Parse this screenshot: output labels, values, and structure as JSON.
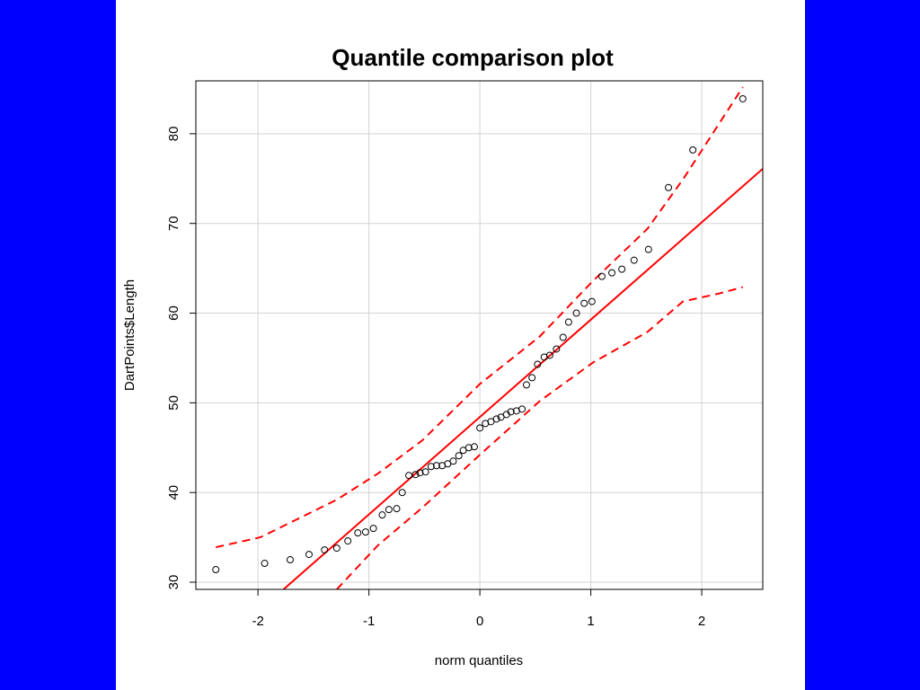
{
  "chart_data": {
    "type": "scatter",
    "title": "Quantile comparison plot",
    "xlabel": "norm quantiles",
    "ylabel": "DartPoints$Length",
    "xlim": [
      -2.56,
      2.55
    ],
    "ylim": [
      29.2,
      85.9
    ],
    "xticks": [
      -2,
      -1,
      0,
      1,
      2
    ],
    "yticks": [
      30,
      40,
      50,
      60,
      70,
      80
    ],
    "grid": true,
    "points": {
      "color": "#000000",
      "x": [
        -2.38,
        -1.94,
        -1.71,
        -1.54,
        -1.4,
        -1.29,
        -1.19,
        -1.1,
        -1.03,
        -0.96,
        -0.88,
        -0.82,
        -0.75,
        -0.7,
        -0.64,
        -0.58,
        -0.54,
        -0.49,
        -0.44,
        -0.39,
        -0.34,
        -0.29,
        -0.24,
        -0.19,
        -0.15,
        -0.1,
        -0.05,
        0,
        0.05,
        0.1,
        0.15,
        0.19,
        0.24,
        0.28,
        0.33,
        0.38,
        0.42,
        0.47,
        0.52,
        0.58,
        0.63,
        0.69,
        0.75,
        0.8,
        0.87,
        0.94,
        1.01,
        1.1,
        1.19,
        1.28,
        1.39,
        1.52,
        1.7,
        1.92,
        2.37
      ],
      "y": [
        31.4,
        32.1,
        32.5,
        33.1,
        33.6,
        33.8,
        34.6,
        35.5,
        35.6,
        36.0,
        37.5,
        38.1,
        38.2,
        40.0,
        41.9,
        42.0,
        42.2,
        42.3,
        42.9,
        43.0,
        43.0,
        43.2,
        43.5,
        44.1,
        44.7,
        45.0,
        45.1,
        47.2,
        47.7,
        47.9,
        48.2,
        48.4,
        48.7,
        49.0,
        49.1,
        49.3,
        52.0,
        52.8,
        54.3,
        55.1,
        55.3,
        56.0,
        57.3,
        59.0,
        60.0,
        61.1,
        61.3,
        64.1,
        64.5,
        64.9,
        65.9,
        67.1,
        74.0,
        78.2,
        83.9
      ]
    },
    "lines": [
      {
        "color": "#ff0000",
        "line_style": "solid",
        "x": [
          -1.77,
          2.55
        ],
        "y": [
          29.2,
          76.1
        ]
      },
      {
        "color": "#ff0000",
        "line_style": "dashed",
        "x": [
          -2.38,
          -1.98,
          -1.65,
          -1.29,
          -0.92,
          -0.52,
          0,
          0.54,
          1.02,
          1.51,
          1.83,
          2.16,
          2.37
        ],
        "y": [
          33.9,
          35.0,
          37.0,
          39.2,
          42.1,
          45.8,
          52.1,
          57.4,
          63.6,
          69.4,
          74.9,
          81.2,
          85.2
        ]
      },
      {
        "color": "#ff0000",
        "line_style": "dashed",
        "x": [
          -1.29,
          -0.92,
          -0.52,
          0,
          0.54,
          1.02,
          1.51,
          1.83,
          2.16,
          2.37
        ],
        "y": [
          29.2,
          34.1,
          38.3,
          44.2,
          50.2,
          54.5,
          57.9,
          61.3,
          62.2,
          62.9
        ]
      }
    ]
  }
}
